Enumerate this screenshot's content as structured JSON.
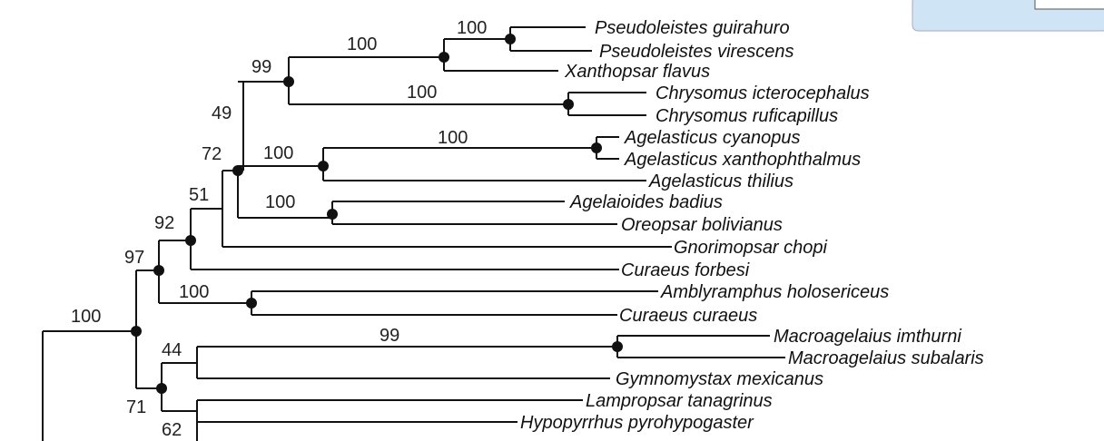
{
  "taxa": [
    "Pseudoleistes guirahuro",
    "Pseudoleistes virescens",
    "Xanthopsar flavus",
    "Chrysomus icterocephalus",
    "Chrysomus ruficapillus",
    "Agelasticus cyanopus",
    "Agelasticus xanthophthalmus",
    "Agelasticus thilius",
    "Agelaioides badius",
    "Oreopsar bolivianus",
    "Gnorimopsar chopi",
    "Curaeus forbesi",
    "Amblyramphus holosericeus",
    "Curaeus curaeus",
    "Macroagelaius imthurni",
    "Macroagelaius subalaris",
    "Gymnomystax mexicanus",
    "Lampropsar tanagrinus",
    "Hypopyrrhus pyrohypogaster"
  ],
  "support": [
    "100",
    "100",
    "99",
    "100",
    "49",
    "100",
    "100",
    "72",
    "100",
    "51",
    "92",
    "97",
    "100",
    "100",
    "99",
    "44",
    "71",
    "62"
  ]
}
